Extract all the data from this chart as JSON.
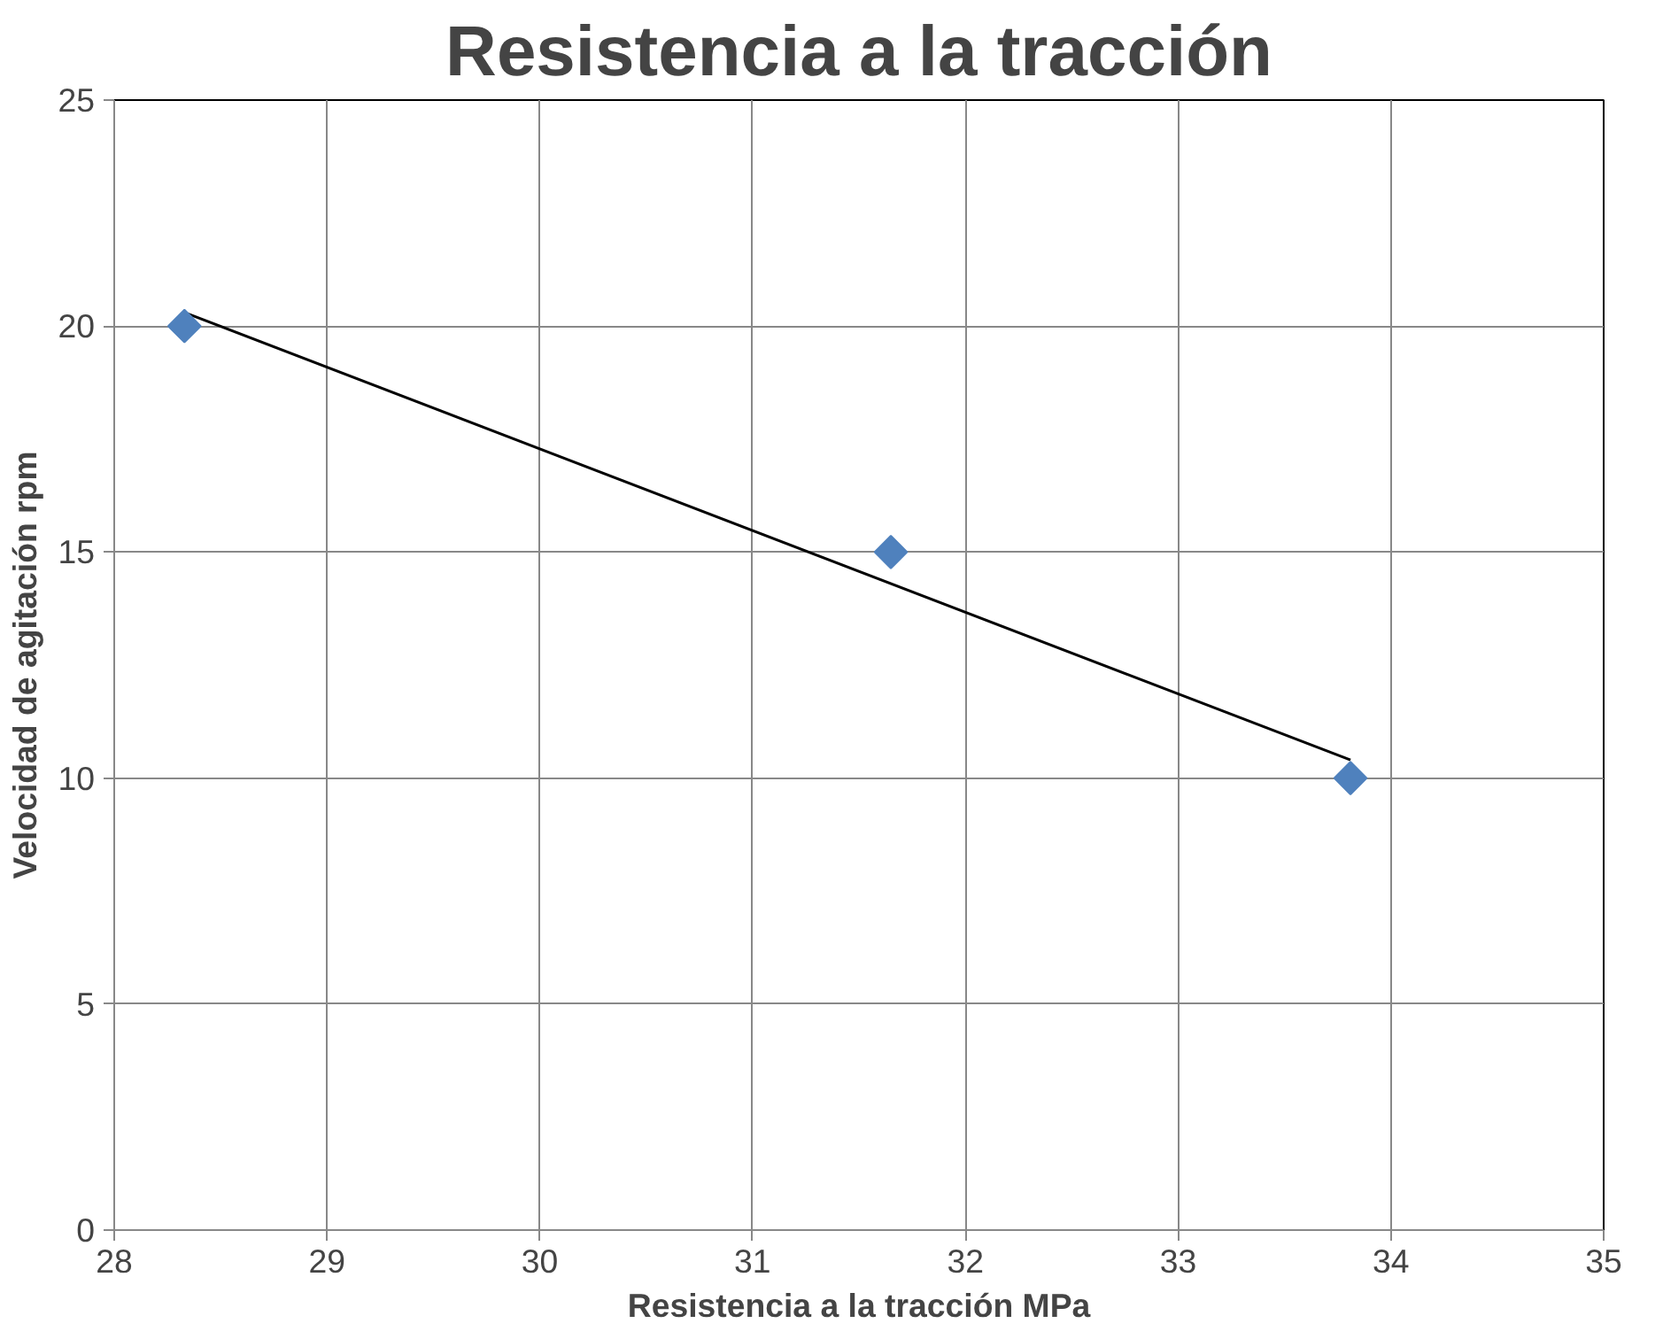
{
  "chart_data": {
    "type": "scatter",
    "title": "Resistencia a la tracción",
    "xlabel": "Resistencia a la tracción MPa",
    "ylabel": "Velocidad de agitación rpm",
    "xlim": [
      28,
      35
    ],
    "xticks": [
      28,
      29,
      30,
      31,
      32,
      33,
      34,
      35
    ],
    "ylim": [
      0,
      25
    ],
    "yticks": [
      0,
      5,
      10,
      15,
      20,
      25
    ],
    "grid": true,
    "series": [
      {
        "marker": "diamond",
        "color": "#4f81bd",
        "x": [
          28.33,
          31.65,
          33.81
        ],
        "values": [
          20,
          15,
          10
        ]
      },
      {
        "type": "line",
        "color": "#000000",
        "x": [
          28.33,
          33.81
        ],
        "values": [
          20.3,
          10.4
        ]
      }
    ]
  }
}
